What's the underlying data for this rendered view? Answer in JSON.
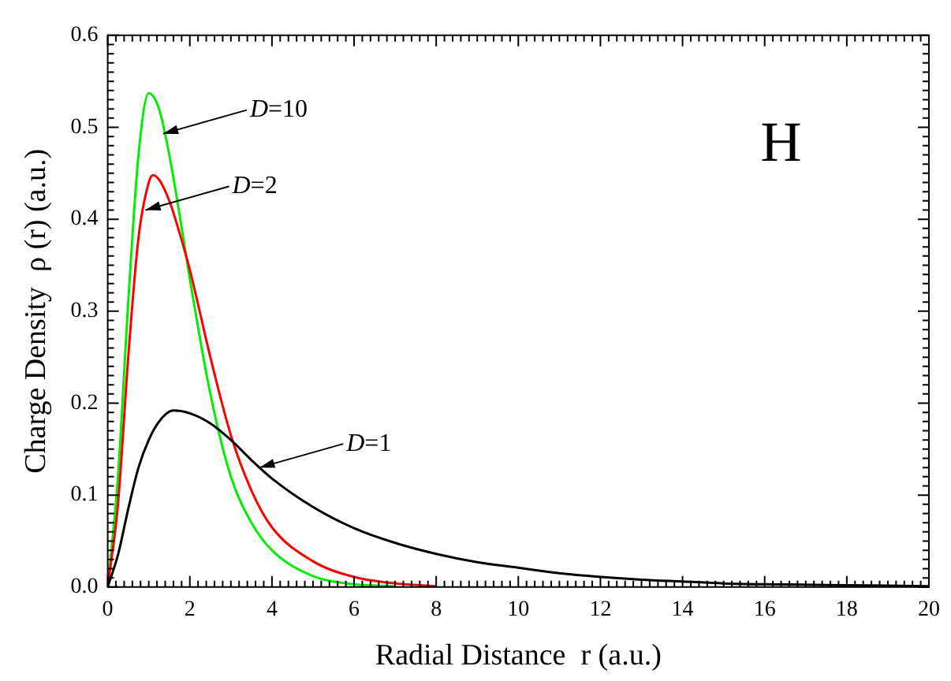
{
  "chart_data": {
    "type": "line",
    "xlabel": "Radial Distance  r (a.u.)",
    "ylabel": "Charge Density  ρ (r) (a.u.)",
    "xlim": [
      0,
      20
    ],
    "xticks": [
      0,
      2,
      4,
      6,
      8,
      10,
      12,
      14,
      16,
      18,
      20
    ],
    "ylim": [
      0,
      0.6
    ],
    "yticks": [
      {
        "value": 0,
        "label": "0.0"
      },
      {
        "value": 0.1,
        "label": "0.1"
      },
      {
        "value": 0.2,
        "label": "0.2"
      },
      {
        "value": 0.3,
        "label": "0.3"
      },
      {
        "value": 0.4,
        "label": "0.4"
      },
      {
        "value": 0.5,
        "label": "0.5"
      },
      {
        "value": 0.6,
        "label": "0.6"
      }
    ],
    "grid": false,
    "legend": false,
    "marker": "none",
    "line_style": "solid",
    "series": [
      {
        "color": "#000000",
        "x": [
          0,
          0.25,
          0.5,
          0.75,
          1,
          1.25,
          1.6,
          2,
          2.5,
          3,
          3.5,
          4,
          5,
          6,
          7,
          8,
          9,
          10,
          11,
          12,
          13,
          14,
          15,
          16,
          18,
          20
        ],
        "values": [
          0,
          0.035,
          0.085,
          0.13,
          0.16,
          0.18,
          0.192,
          0.189,
          0.178,
          0.16,
          0.138,
          0.118,
          0.087,
          0.064,
          0.048,
          0.036,
          0.027,
          0.021,
          0.015,
          0.011,
          0.008,
          0.006,
          0.004,
          0.003,
          0.002,
          0.001
        ]
      },
      {
        "color": "#ff0000",
        "x": [
          0,
          0.25,
          0.5,
          0.75,
          1,
          1.1,
          1.25,
          1.5,
          1.75,
          2,
          2.5,
          3,
          3.5,
          4,
          5,
          6,
          7,
          8
        ],
        "values": [
          0,
          0.09,
          0.25,
          0.38,
          0.44,
          0.448,
          0.443,
          0.42,
          0.385,
          0.345,
          0.25,
          0.165,
          0.105,
          0.065,
          0.028,
          0.011,
          0.004,
          0.001
        ]
      },
      {
        "color": "#00ee00",
        "x": [
          0,
          0.25,
          0.5,
          0.75,
          1,
          1.25,
          1.5,
          1.75,
          2,
          2.5,
          3,
          3.5,
          4,
          5,
          6,
          7
        ],
        "values": [
          0,
          0.12,
          0.31,
          0.47,
          0.537,
          0.52,
          0.47,
          0.405,
          0.335,
          0.21,
          0.12,
          0.07,
          0.04,
          0.012,
          0.003,
          0.001
        ]
      }
    ],
    "annotations": [
      {
        "text": "D=10",
        "x": 1.35,
        "y": 0.493
      },
      {
        "text": "D=2",
        "x": 0.92,
        "y": 0.41
      },
      {
        "text": "D=1",
        "x": 3.7,
        "y": 0.13
      },
      "H"
    ]
  }
}
